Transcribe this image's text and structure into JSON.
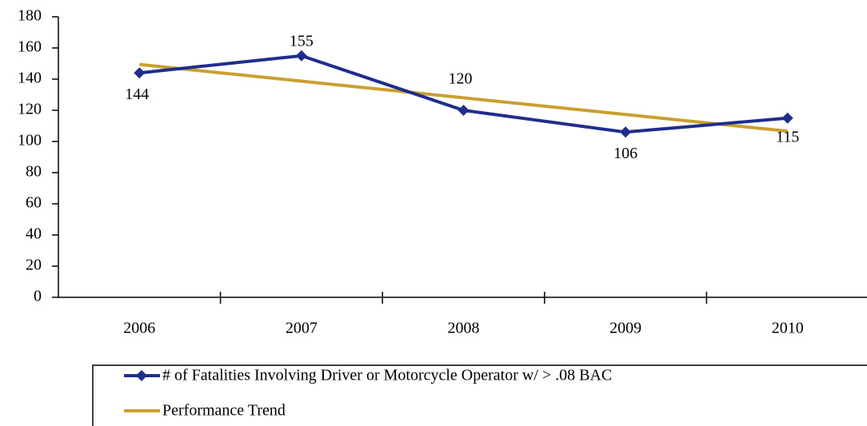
{
  "chart_data": {
    "type": "line",
    "categories": [
      "2006",
      "2007",
      "2008",
      "2009",
      "2010"
    ],
    "series": [
      {
        "name": "# of Fatalities Involving Driver or Motorcycle Operator w/ > .08 BAC",
        "color": "#1f2e8c",
        "values": [
          144,
          155,
          120,
          106,
          115
        ],
        "markers": true,
        "data_labels": true
      },
      {
        "name": "Performance Trend",
        "color": "#c9a030",
        "values": [
          149.4,
          138.7,
          128,
          117.3,
          106.6
        ],
        "markers": false,
        "data_labels": false
      }
    ],
    "ylim": [
      0,
      180
    ],
    "yticks": [
      0,
      20,
      40,
      60,
      80,
      100,
      120,
      140,
      160,
      180
    ],
    "grid": false,
    "legend": "bottom"
  }
}
